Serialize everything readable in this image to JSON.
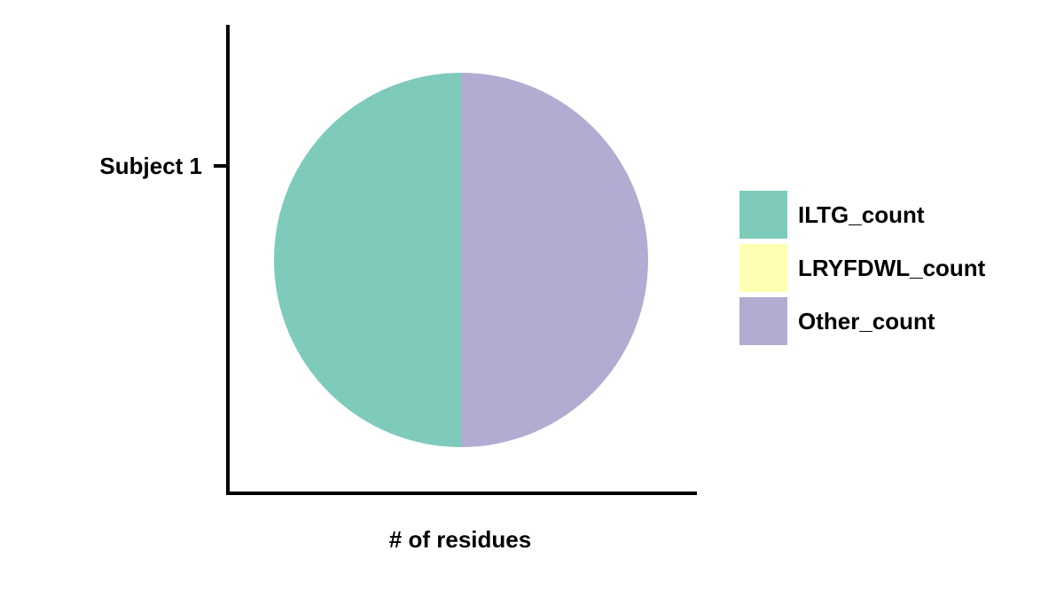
{
  "chart_data": {
    "type": "pie",
    "title": "",
    "xlabel": "# of residues",
    "ylabel": "",
    "y_tick_labels": [
      "Subject 1"
    ],
    "slices": [
      {
        "label": "ILTG_count",
        "value": 1,
        "color": "#7fcbbb"
      },
      {
        "label": "LRYFDWL_count",
        "value": 0,
        "color": "#ffffb3"
      },
      {
        "label": "Other_count",
        "value": 1,
        "color": "#b0acd2"
      }
    ],
    "legend": {
      "placement": "right",
      "entries": [
        "ILTG_count",
        "LRYFDWL_count",
        "Other_count"
      ]
    },
    "grid": false
  }
}
